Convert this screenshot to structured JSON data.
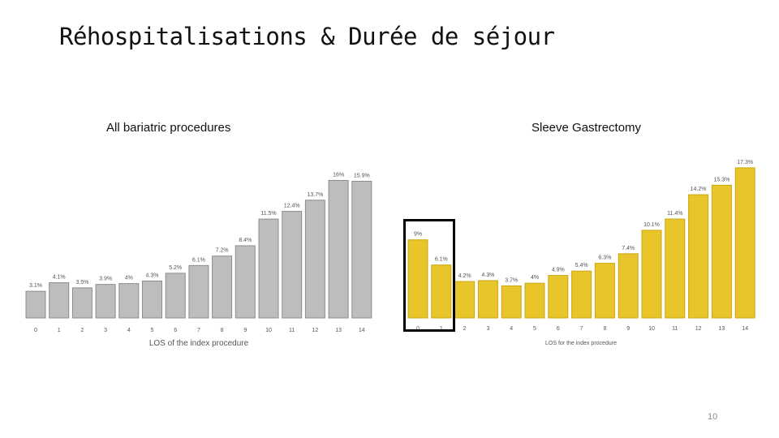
{
  "slide": {
    "title": "Réhospitalisations & Durée de séjour",
    "page_number": "10"
  },
  "colors": {
    "left_bar_fill": "#bdbdbd",
    "left_bar_stroke": "#8c8c8c",
    "right_bar_fill": "#e8c52a",
    "right_bar_stroke": "#c9a80f",
    "axis_text": "#555555",
    "highlight_box": "#000000"
  },
  "chart_data": [
    {
      "type": "bar",
      "title": "All bariatric procedures",
      "xlabel": "LOS of the index procedure",
      "ylabel": "",
      "categories": [
        "0",
        "1",
        "2",
        "3",
        "4",
        "5",
        "6",
        "7",
        "8",
        "9",
        "10",
        "11",
        "12",
        "13",
        "14"
      ],
      "values": [
        3.1,
        4.1,
        3.5,
        3.9,
        4,
        4.3,
        5.2,
        6.1,
        7.2,
        8.4,
        11.5,
        12.4,
        13.7,
        16,
        15.9
      ],
      "value_labels": [
        "3.1%",
        "4.1%",
        "3.5%",
        "3.9%",
        "4%",
        "4.3%",
        "5.2%",
        "6.1%",
        "7.2%",
        "8.4%",
        "11.5%",
        "12.4%",
        "13.7%",
        "16%",
        "15.9%"
      ],
      "ylim": [
        0,
        18
      ],
      "grid": false,
      "legend": "none"
    },
    {
      "type": "bar",
      "title": "Sleeve Gastrectomy",
      "xlabel": "LOS for the index procedure",
      "ylabel": "",
      "categories": [
        "0",
        "1",
        "2",
        "3",
        "4",
        "5",
        "6",
        "7",
        "8",
        "9",
        "10",
        "11",
        "12",
        "13",
        "14"
      ],
      "values": [
        9,
        6.1,
        4.2,
        4.3,
        3.7,
        4,
        4.9,
        5.4,
        6.3,
        7.4,
        10.1,
        11.4,
        14.2,
        15.3,
        17.3
      ],
      "value_labels": [
        "9%",
        "6.1%",
        "4.2%",
        "4.3%",
        "3.7%",
        "4%",
        "4.9%",
        "5.4%",
        "6.3%",
        "7.4%",
        "10.1%",
        "11.4%",
        "14.2%",
        "15.3%",
        "17.3%"
      ],
      "highlighted_categories": [
        "0",
        "1"
      ],
      "ylim": [
        0,
        18
      ],
      "grid": false,
      "legend": "none"
    }
  ]
}
